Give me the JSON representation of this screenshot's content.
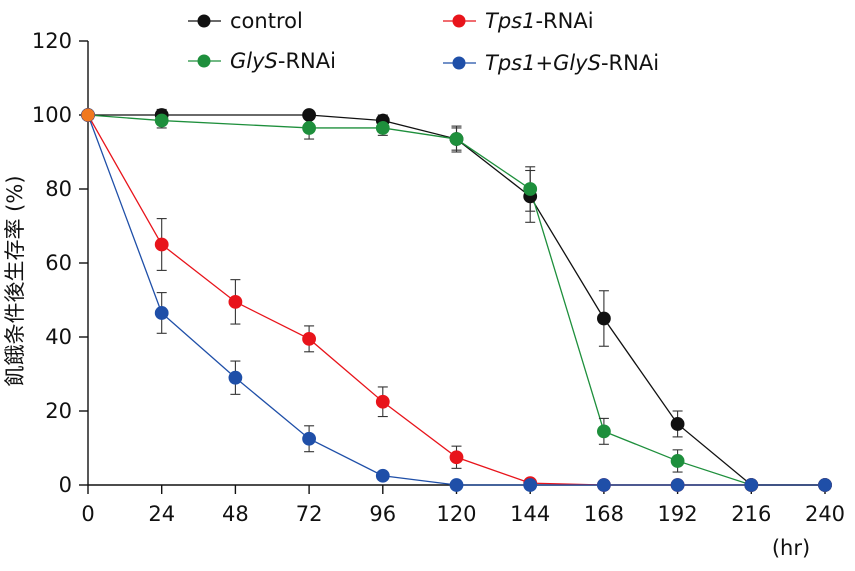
{
  "chart_data": {
    "type": "line",
    "title": "",
    "xlabel": "(hr)",
    "ylabel": "飢餓条件後生存率 (%)",
    "x": [
      0,
      24,
      48,
      72,
      96,
      120,
      144,
      168,
      192,
      216,
      240
    ],
    "xlim": [
      0,
      240
    ],
    "ylim": [
      0,
      120
    ],
    "x_ticks": [
      "0",
      "24",
      "48",
      "72",
      "96",
      "120",
      "144",
      "168",
      "192",
      "216",
      "240"
    ],
    "y_ticks": [
      "0",
      "20",
      "40",
      "60",
      "80",
      "100",
      "120"
    ],
    "grid": false,
    "legend_position": "top",
    "series": [
      {
        "name": "control",
        "legend_parts": [
          {
            "text": "control",
            "italic": false
          }
        ],
        "color": "#111111",
        "x": [
          0,
          24,
          72,
          96,
          120,
          144,
          168,
          192,
          216,
          240
        ],
        "values": [
          100,
          100,
          100,
          98.5,
          93.5,
          78,
          45,
          16.5,
          0,
          0
        ],
        "errors": [
          0,
          1.5,
          1,
          1.5,
          3,
          7,
          7.5,
          3.5,
          0,
          0
        ]
      },
      {
        "name": "GlyS-RNAi",
        "legend_parts": [
          {
            "text": "GlyS",
            "italic": true
          },
          {
            "text": "-RNAi",
            "italic": false
          }
        ],
        "color": "#1e8f3c",
        "x": [
          0,
          24,
          72,
          96,
          120,
          144,
          168,
          192,
          216,
          240
        ],
        "values": [
          100,
          98.5,
          96.5,
          96.5,
          93.5,
          80,
          14.5,
          6.5,
          0,
          0
        ],
        "errors": [
          0,
          2,
          3,
          2,
          3.5,
          6,
          3.5,
          3,
          0,
          0
        ]
      },
      {
        "name": "Tps1-RNAi",
        "legend_parts": [
          {
            "text": "Tps1",
            "italic": true
          },
          {
            "text": "-RNAi",
            "italic": false
          }
        ],
        "color": "#e8141b",
        "x": [
          0,
          24,
          48,
          72,
          96,
          120,
          144,
          168,
          192,
          216,
          240
        ],
        "values": [
          100,
          65,
          49.5,
          39.5,
          22.5,
          7.5,
          0.5,
          0,
          0,
          0,
          0
        ],
        "errors": [
          0,
          7,
          6,
          3.5,
          4,
          3,
          0,
          0,
          0,
          0,
          0
        ]
      },
      {
        "name": "Tps1+GlyS-RNAi",
        "legend_parts": [
          {
            "text": "Tps1",
            "italic": true
          },
          {
            "text": "+",
            "italic": false
          },
          {
            "text": "GlyS",
            "italic": true
          },
          {
            "text": "-RNAi",
            "italic": false
          }
        ],
        "color": "#1f4fa8",
        "x": [
          0,
          24,
          48,
          72,
          96,
          120,
          144,
          168,
          192,
          216,
          240
        ],
        "values": [
          100,
          46.5,
          29,
          12.5,
          2.5,
          0,
          0,
          0,
          0,
          0,
          0
        ],
        "errors": [
          0,
          5.5,
          4.5,
          3.5,
          0,
          0,
          0,
          0,
          0,
          0,
          0
        ]
      }
    ],
    "start_point_color": "#f07820"
  }
}
